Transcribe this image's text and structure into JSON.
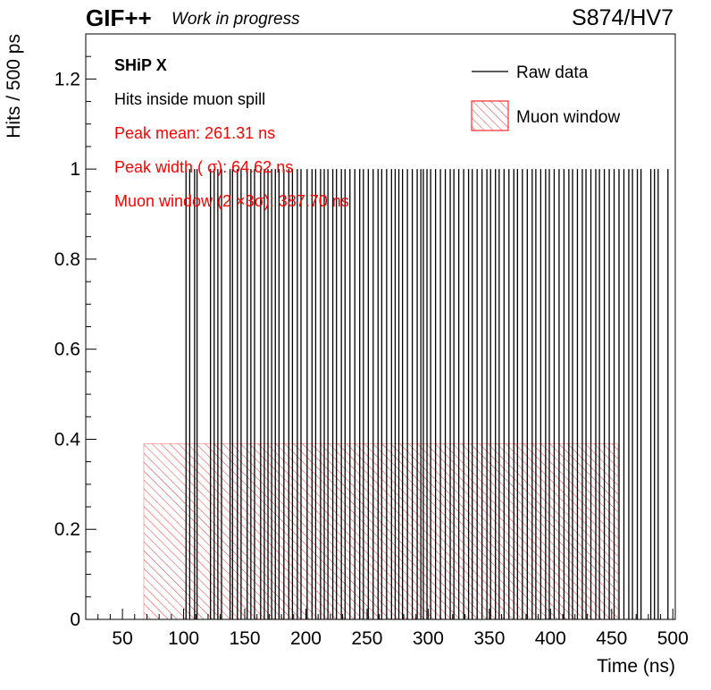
{
  "header": {
    "brand": "GIF++",
    "subtitle": "Work in progress",
    "run_label": "S874/HV7"
  },
  "chart_data": {
    "type": "bar",
    "xlabel": "Time (ns)",
    "ylabel": "Hits / 500 ps",
    "xlim": [
      20,
      502
    ],
    "ylim": [
      0,
      1.3
    ],
    "x_ticks": [
      50,
      100,
      150,
      200,
      250,
      300,
      350,
      400,
      450,
      500
    ],
    "y_ticks": [
      "0",
      "0.2",
      "0.4",
      "0.6",
      "0.8",
      "1",
      "1.2"
    ],
    "bin_width_ns": 0.5,
    "series": [
      {
        "name": "Raw data",
        "color": "#000000",
        "style": "histogram",
        "hit_times": [
          102,
          105,
          109,
          111,
          122,
          125,
          128,
          131,
          138,
          140,
          144,
          147,
          152,
          155,
          158,
          163,
          166,
          169,
          172,
          175,
          178,
          182,
          186,
          189,
          193,
          196,
          201,
          205,
          208,
          212,
          215,
          218,
          222,
          225,
          229,
          232,
          236,
          240,
          244,
          247,
          251,
          255,
          259,
          262,
          266,
          270,
          273,
          276,
          279,
          283,
          287,
          291,
          294,
          296,
          299,
          302,
          306,
          310,
          314,
          318,
          321,
          325,
          329,
          333,
          336,
          340,
          344,
          348,
          351,
          355,
          358,
          362,
          366,
          370,
          373,
          377,
          381,
          385,
          388,
          392,
          396,
          399,
          403,
          407,
          411,
          415,
          418,
          422,
          426,
          429,
          433,
          437,
          440,
          444,
          448,
          452,
          456,
          460,
          464,
          467,
          471,
          474,
          482,
          485,
          488,
          496
        ]
      },
      {
        "name": "Muon window",
        "color": "#ff0000",
        "style": "hatched-box",
        "x_range": [
          67.46,
          455.16
        ],
        "height": 0.39
      }
    ],
    "annotations": {
      "experiment": "SHiP X",
      "description": "Hits inside muon spill",
      "peak_mean": "Peak mean: 261.31 ns",
      "peak_width": "Peak width ( σ): 64.62 ns",
      "muon_window": "Muon window (2 ×3σ): 387.70 ns"
    },
    "legend_position": "top-right",
    "grid": false
  }
}
